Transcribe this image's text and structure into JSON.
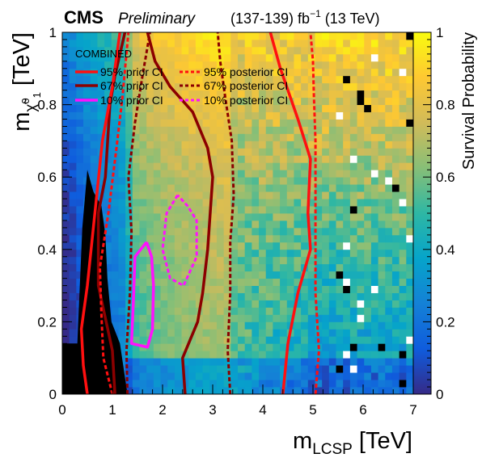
{
  "header": {
    "cms": "CMS",
    "preliminary": "Preliminary",
    "lumi_prefix": "(137-139) fb",
    "lumi_sup": "−1",
    "lumi_suffix": " (13 TeV)"
  },
  "legend": {
    "title": "COMBINED",
    "prior_95": "95% prior CI",
    "prior_67": "67% prior CI",
    "prior_10": "10% prior CI",
    "post_95": "95% posterior CI",
    "post_67": "67% posterior CI",
    "post_10": "10% posterior CI"
  },
  "axes": {
    "xlabel_main": "m",
    "xlabel_sub": "LCSP",
    "xlabel_unit": " [TeV]",
    "ylabel_main": "m",
    "ylabel_sub": "χ̃",
    "ylabel_sup": "0",
    "ylabel_subsub": "1",
    "ylabel_unit": " [TeV]",
    "zlabel": "Survival Probability",
    "x_ticks": [
      "0",
      "1",
      "2",
      "3",
      "4",
      "5",
      "6",
      "7"
    ],
    "y_ticks": [
      "0",
      "0.2",
      "0.4",
      "0.6",
      "0.8",
      "1"
    ],
    "z_ticks": [
      "0",
      "0.2",
      "0.4",
      "0.6",
      "0.8",
      "1"
    ]
  },
  "colors": {
    "prior_95": "#ff1010",
    "prior_67": "#8b0000",
    "prior_10": "#ff10ff",
    "excluded": "#000000"
  },
  "chart_data": {
    "type": "heatmap",
    "xlabel": "m_LCSP [TeV]",
    "ylabel": "m_χ̃10 [TeV]",
    "zlabel": "Survival Probability",
    "xlim": [
      0,
      7
    ],
    "ylim": [
      0,
      1
    ],
    "zlim": [
      0,
      1
    ],
    "x_bins": 50,
    "y_bins": 50,
    "colormap": [
      "#352a87",
      "#0f5cdd",
      "#1481d6",
      "#06a4ca",
      "#2eb7a4",
      "#87bf77",
      "#d1bb59",
      "#fec832",
      "#f9fb0e"
    ],
    "excluded_region": [
      [
        0,
        0
      ],
      [
        0.0,
        0.14
      ],
      [
        0.3,
        0.14
      ],
      [
        0.4,
        0.46
      ],
      [
        0.5,
        0.62
      ],
      [
        0.62,
        0.56
      ],
      [
        0.78,
        0.52
      ],
      [
        0.86,
        0.44
      ],
      [
        0.9,
        0.32
      ],
      [
        0.98,
        0.2
      ],
      [
        1.15,
        0.14
      ],
      [
        1.3,
        0.0
      ]
    ],
    "prior_contours": {
      "95": [
        [
          [
            0.5,
            0.0
          ],
          [
            0.42,
            0.08
          ],
          [
            0.38,
            0.18
          ],
          [
            0.5,
            0.3
          ],
          [
            0.65,
            0.5
          ],
          [
            0.8,
            0.7
          ],
          [
            1.0,
            0.85
          ],
          [
            1.15,
            1.0
          ]
        ],
        [
          [
            4.4,
            0.0
          ],
          [
            4.5,
            0.14
          ],
          [
            4.7,
            0.28
          ],
          [
            4.95,
            0.4
          ],
          [
            4.9,
            0.5
          ],
          [
            4.95,
            0.65
          ],
          [
            4.7,
            0.76
          ],
          [
            4.35,
            0.9
          ],
          [
            4.15,
            1.0
          ]
        ]
      ],
      "67": [
        [
          [
            1.05,
            0.0
          ],
          [
            1.0,
            0.12
          ],
          [
            0.72,
            0.3
          ],
          [
            0.72,
            0.5
          ],
          [
            0.86,
            0.6
          ],
          [
            0.95,
            0.8
          ],
          [
            1.05,
            0.88
          ],
          [
            1.25,
            1.0
          ]
        ],
        [
          [
            2.45,
            0.0
          ],
          [
            2.4,
            0.1
          ],
          [
            2.7,
            0.2
          ],
          [
            2.8,
            0.28
          ],
          [
            2.9,
            0.4
          ],
          [
            2.95,
            0.5
          ],
          [
            3.0,
            0.6
          ],
          [
            2.9,
            0.68
          ],
          [
            2.6,
            0.78
          ],
          [
            2.15,
            0.85
          ],
          [
            1.85,
            0.92
          ],
          [
            1.7,
            1.0
          ]
        ]
      ],
      "10": [
        [
          [
            1.68,
            0.42
          ],
          [
            1.45,
            0.38
          ],
          [
            1.42,
            0.26
          ],
          [
            1.38,
            0.14
          ],
          [
            1.7,
            0.13
          ],
          [
            1.8,
            0.18
          ],
          [
            1.82,
            0.3
          ],
          [
            1.78,
            0.38
          ],
          [
            1.68,
            0.42
          ]
        ]
      ]
    },
    "posterior_contours": {
      "95": [
        [
          [
            1.0,
            0.0
          ],
          [
            0.82,
            0.1
          ],
          [
            0.78,
            0.22
          ],
          [
            0.75,
            0.35
          ],
          [
            0.92,
            0.5
          ],
          [
            1.08,
            0.68
          ],
          [
            1.2,
            0.82
          ],
          [
            1.32,
            1.0
          ]
        ],
        [
          [
            5.05,
            0.0
          ],
          [
            5.12,
            0.12
          ],
          [
            5.05,
            0.28
          ],
          [
            5.05,
            0.42
          ],
          [
            5.05,
            0.55
          ],
          [
            5.05,
            0.7
          ],
          [
            5.02,
            0.82
          ],
          [
            5.0,
            0.92
          ],
          [
            4.95,
            1.0
          ]
        ]
      ],
      "67": [
        [
          [
            1.3,
            0.0
          ],
          [
            1.28,
            0.12
          ],
          [
            1.35,
            0.28
          ],
          [
            1.38,
            0.45
          ],
          [
            1.32,
            0.6
          ],
          [
            1.45,
            0.75
          ],
          [
            1.6,
            0.88
          ],
          [
            1.75,
            1.0
          ]
        ],
        [
          [
            3.35,
            0.0
          ],
          [
            3.3,
            0.12
          ],
          [
            3.35,
            0.28
          ],
          [
            3.35,
            0.42
          ],
          [
            3.42,
            0.55
          ],
          [
            3.38,
            0.7
          ],
          [
            3.25,
            0.82
          ],
          [
            3.15,
            0.92
          ],
          [
            3.1,
            1.0
          ]
        ]
      ],
      "10": [
        [
          [
            2.3,
            0.55
          ],
          [
            2.08,
            0.5
          ],
          [
            2.0,
            0.4
          ],
          [
            2.15,
            0.32
          ],
          [
            2.42,
            0.3
          ],
          [
            2.68,
            0.38
          ],
          [
            2.68,
            0.48
          ],
          [
            2.5,
            0.52
          ],
          [
            2.3,
            0.55
          ]
        ]
      ]
    }
  }
}
